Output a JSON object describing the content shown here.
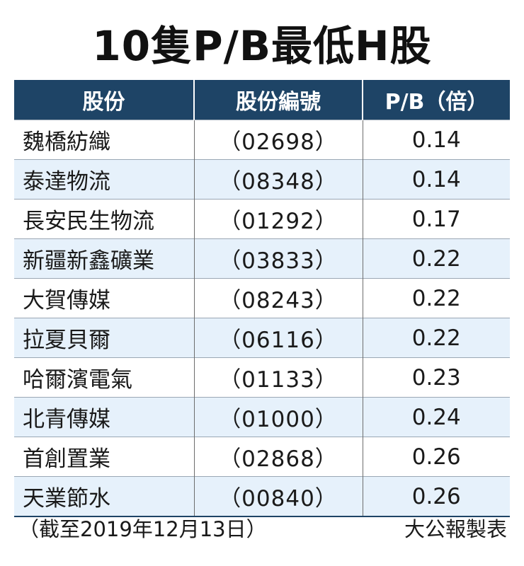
{
  "title": "10隻P/B最低H股",
  "headers": [
    "股份",
    "股份編號",
    "P/B（倍）"
  ],
  "rows": [
    {
      "name": "魏橋紡織",
      "code": "（02698）",
      "pb": "0.14"
    },
    {
      "name": "泰達物流",
      "code": "（08348）",
      "pb": "0.14"
    },
    {
      "name": "長安民生物流",
      "code": "（01292）",
      "pb": "0.17"
    },
    {
      "name": "新疆新鑫礦業",
      "code": "（03833）",
      "pb": "0.22"
    },
    {
      "name": "大賀傳媒",
      "code": "（08243）",
      "pb": "0.22"
    },
    {
      "name": "拉夏貝爾",
      "code": "（06116）",
      "pb": "0.22"
    },
    {
      "name": "哈爾濱電氣",
      "code": "（01133）",
      "pb": "0.23"
    },
    {
      "name": "北青傳媒",
      "code": "（01000）",
      "pb": "0.24"
    },
    {
      "name": "首創置業",
      "code": "（02868）",
      "pb": "0.26"
    },
    {
      "name": "天業節水",
      "code": "（00840）",
      "pb": "0.26"
    }
  ],
  "footer": {
    "date_note": "（截至2019年12月13日）",
    "source": "大公報製表"
  },
  "colors": {
    "header_bg": "#1e4466",
    "row_alt_bg": "#e6f1fb"
  }
}
